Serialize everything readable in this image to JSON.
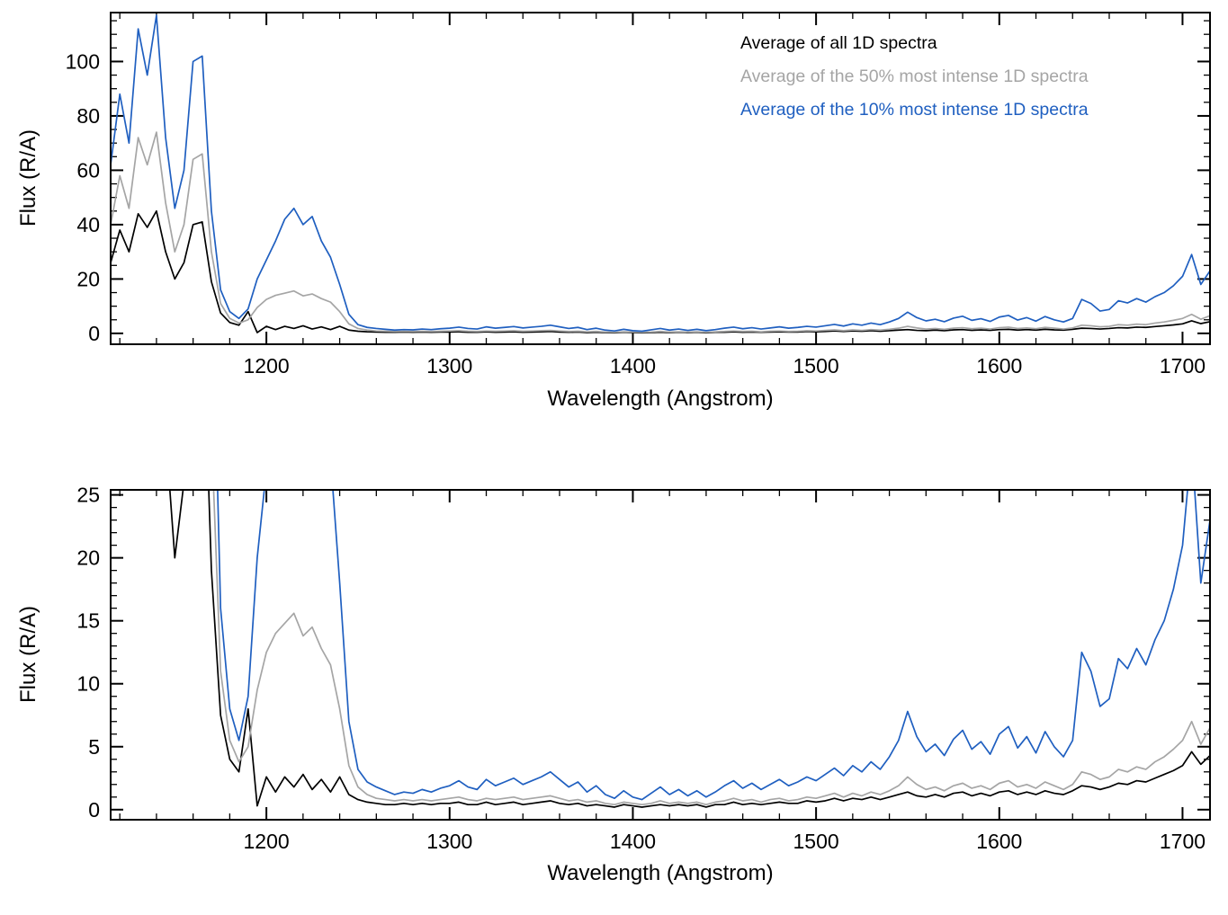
{
  "figure": {
    "background": "#ffffff"
  },
  "chart_data": {
    "type": "line",
    "title": "",
    "xlabel": "Wavelength (Angstrom)",
    "ylabel": "Flux (R/A)",
    "xlim": [
      1115,
      1715
    ],
    "xticks": [
      1200,
      1300,
      1400,
      1500,
      1600,
      1700
    ],
    "x_minor_step": 20,
    "x_start": 1115,
    "x_step": 5,
    "grid": false,
    "legend_position": "upper-right-inside-top-panel",
    "panels": [
      {
        "name": "full-scale",
        "ylim": [
          -4,
          118
        ],
        "yticks": [
          0,
          20,
          40,
          60,
          80,
          100
        ],
        "y_minor_step": 5,
        "legend": true
      },
      {
        "name": "zoomed",
        "ylim": [
          -0.8,
          25.4
        ],
        "yticks": [
          0,
          5,
          10,
          15,
          20,
          25
        ],
        "y_minor_step": 1,
        "legend": false
      }
    ],
    "series": [
      {
        "name": "all-spectra",
        "label": "Average of all 1D spectra",
        "color": "#000000",
        "values": [
          26,
          38,
          30,
          44,
          39,
          45,
          30,
          20,
          26,
          40,
          41,
          19,
          7.5,
          4,
          3,
          8,
          0.3,
          2.6,
          1.4,
          2.6,
          1.8,
          2.8,
          1.6,
          2.4,
          1.4,
          2.6,
          1.2,
          0.8,
          0.6,
          0.5,
          0.4,
          0.4,
          0.5,
          0.4,
          0.5,
          0.4,
          0.5,
          0.5,
          0.6,
          0.4,
          0.4,
          0.6,
          0.4,
          0.5,
          0.6,
          0.4,
          0.5,
          0.6,
          0.7,
          0.5,
          0.4,
          0.5,
          0.3,
          0.4,
          0.3,
          0.2,
          0.4,
          0.3,
          0.2,
          0.3,
          0.4,
          0.3,
          0.4,
          0.3,
          0.4,
          0.2,
          0.4,
          0.4,
          0.6,
          0.4,
          0.5,
          0.4,
          0.5,
          0.6,
          0.5,
          0.5,
          0.7,
          0.6,
          0.7,
          0.9,
          0.7,
          0.9,
          0.8,
          1.0,
          0.8,
          1.0,
          1.2,
          1.4,
          1.1,
          1.0,
          1.2,
          1.0,
          1.3,
          1.4,
          1.1,
          1.3,
          1.1,
          1.4,
          1.5,
          1.2,
          1.4,
          1.2,
          1.5,
          1.3,
          1.2,
          1.5,
          1.9,
          1.8,
          1.6,
          1.8,
          2.1,
          2.0,
          2.3,
          2.2,
          2.5,
          2.8,
          3.1,
          3.5,
          4.6,
          3.6,
          4.3
        ]
      },
      {
        "name": "top-50-percent",
        "label": "Average of the 50% most intense 1D spectra",
        "color": "#a5a5a5",
        "values": [
          40,
          58,
          46,
          72,
          62,
          74,
          48,
          30,
          40,
          64,
          66,
          30,
          11,
          5.5,
          3.8,
          5,
          9.5,
          12.5,
          14,
          14.8,
          15.6,
          13.8,
          14.5,
          12.8,
          11.5,
          8,
          3.5,
          1.8,
          1.2,
          0.9,
          0.8,
          0.7,
          0.8,
          0.7,
          0.8,
          0.7,
          0.8,
          0.9,
          1.0,
          0.8,
          0.7,
          0.9,
          0.8,
          0.9,
          1.0,
          0.8,
          0.9,
          1.0,
          1.1,
          0.9,
          0.7,
          0.8,
          0.6,
          0.7,
          0.5,
          0.4,
          0.6,
          0.5,
          0.4,
          0.5,
          0.7,
          0.5,
          0.6,
          0.5,
          0.6,
          0.4,
          0.6,
          0.7,
          0.9,
          0.7,
          0.8,
          0.6,
          0.8,
          0.9,
          0.7,
          0.8,
          1.0,
          0.9,
          1.1,
          1.3,
          1.0,
          1.3,
          1.1,
          1.4,
          1.2,
          1.5,
          1.9,
          2.6,
          2.0,
          1.6,
          1.8,
          1.5,
          1.9,
          2.1,
          1.7,
          1.9,
          1.6,
          2.1,
          2.3,
          1.8,
          2.0,
          1.7,
          2.2,
          1.9,
          1.6,
          2.0,
          3.0,
          2.8,
          2.4,
          2.6,
          3.2,
          3.0,
          3.4,
          3.2,
          3.8,
          4.2,
          4.8,
          5.5,
          7.0,
          5.2,
          6.5
        ]
      },
      {
        "name": "top-10-percent",
        "label": "Average of the 10% most intense 1D spectra",
        "color": "#1f5fc0",
        "values": [
          62,
          88,
          70,
          112,
          95,
          117,
          72,
          46,
          60,
          100,
          102,
          45,
          16,
          8,
          5.5,
          9,
          20,
          27,
          34,
          42,
          46,
          40,
          43,
          34,
          28,
          18,
          7,
          3.2,
          2.2,
          1.8,
          1.5,
          1.2,
          1.4,
          1.3,
          1.6,
          1.4,
          1.7,
          1.9,
          2.3,
          1.8,
          1.6,
          2.4,
          1.9,
          2.2,
          2.5,
          2.0,
          2.3,
          2.6,
          3.0,
          2.4,
          1.8,
          2.2,
          1.4,
          1.9,
          1.2,
          0.9,
          1.5,
          1.0,
          0.8,
          1.3,
          1.8,
          1.2,
          1.6,
          1.1,
          1.5,
          1.0,
          1.4,
          1.9,
          2.3,
          1.7,
          2.1,
          1.6,
          2.0,
          2.4,
          1.9,
          2.2,
          2.6,
          2.3,
          2.8,
          3.3,
          2.7,
          3.5,
          3.0,
          3.8,
          3.2,
          4.2,
          5.5,
          7.8,
          5.8,
          4.6,
          5.2,
          4.3,
          5.6,
          6.3,
          4.8,
          5.4,
          4.4,
          6.0,
          6.6,
          4.9,
          5.8,
          4.5,
          6.2,
          5.0,
          4.2,
          5.5,
          12.5,
          11.0,
          8.2,
          8.8,
          12.0,
          11.2,
          12.8,
          11.5,
          13.5,
          15.0,
          17.5,
          21.0,
          29.0,
          18.0,
          23.0
        ]
      }
    ]
  }
}
